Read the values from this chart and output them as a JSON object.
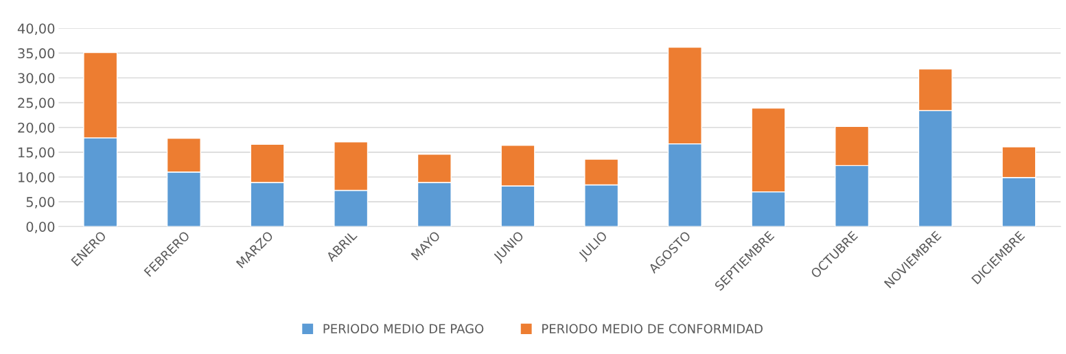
{
  "chart_data": {
    "type": "bar",
    "stacked": true,
    "categories": [
      "ENERO",
      "FEBRERO",
      "MARZO",
      "ABRIL",
      "MAYO",
      "JUNIO",
      "JULIO",
      "AGOSTO",
      "SEPTIEMBRE",
      "OCTUBRE",
      "NOVIEMBRE",
      "DICIEMBRE"
    ],
    "series": [
      {
        "name": "PERIODO MEDIO DE PAGO",
        "color": "#5b9bd5",
        "values": [
          17.9,
          11.0,
          8.9,
          7.3,
          8.9,
          8.2,
          8.4,
          16.7,
          7.0,
          12.3,
          23.4,
          9.9
        ]
      },
      {
        "name": "PERIODO MEDIO DE CONFORMIDAD",
        "color": "#ed7d31",
        "values": [
          17.2,
          6.8,
          7.7,
          9.8,
          5.7,
          8.2,
          5.2,
          19.5,
          16.9,
          7.9,
          8.4,
          6.2
        ]
      }
    ],
    "ylim": [
      0,
      40
    ],
    "yticks": [
      {
        "value": 0,
        "label": "0,00"
      },
      {
        "value": 5,
        "label": "5,00"
      },
      {
        "value": 10,
        "label": "10,00"
      },
      {
        "value": 15,
        "label": "15,00"
      },
      {
        "value": 20,
        "label": "20,00"
      },
      {
        "value": 25,
        "label": "25,00"
      },
      {
        "value": 30,
        "label": "30,00"
      },
      {
        "value": 35,
        "label": "35,00"
      },
      {
        "value": 40,
        "label": "40,00"
      }
    ],
    "grid": "y",
    "legend": "bottom"
  }
}
